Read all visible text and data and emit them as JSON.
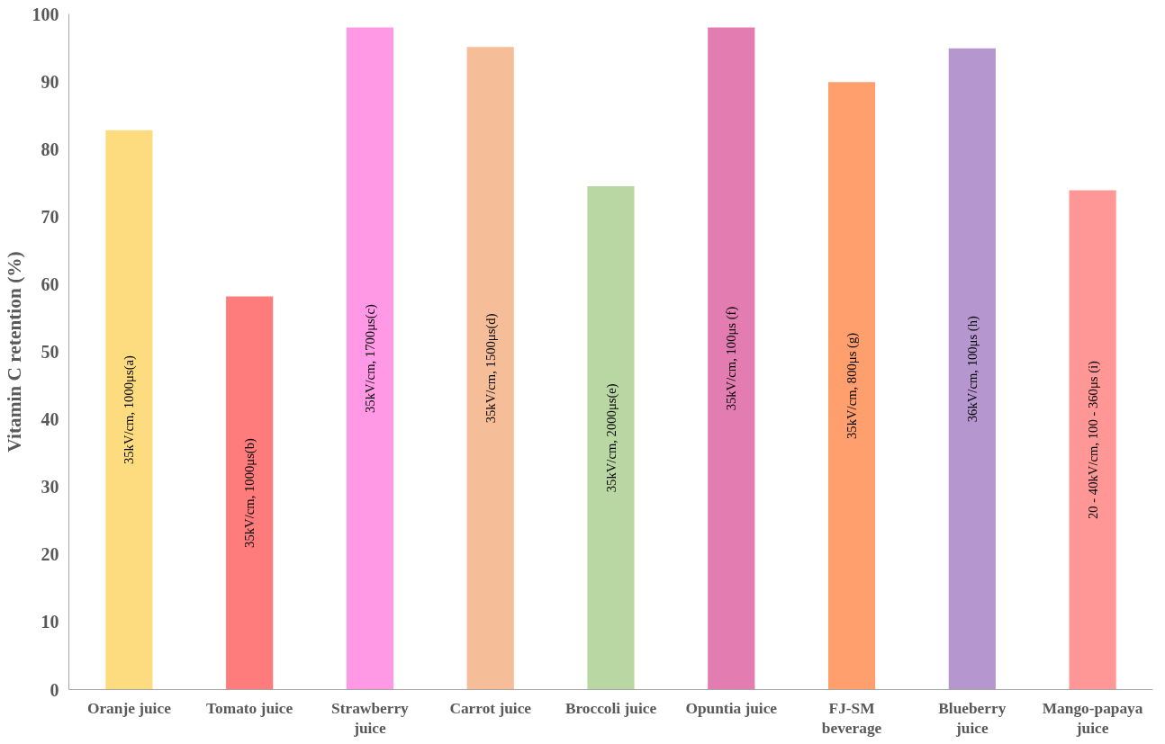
{
  "chart_data": {
    "type": "bar",
    "ylabel": "Vitamin C retention (%)",
    "categories": [
      "Oranje juice",
      "Tomato juice",
      "Strawberry juice",
      "Carrot juice",
      "Broccoli juice",
      "Opuntia juice",
      "FJ-SM beverage",
      "Blueberry juice",
      "Mango-papaya juice"
    ],
    "values": [
      82.8,
      58.2,
      98.0,
      95.1,
      74.5,
      98.0,
      89.9,
      94.9,
      73.9
    ],
    "colors": [
      "#fddc80",
      "#ff7c7c",
      "#ff99e6",
      "#f5bd98",
      "#b9d7a3",
      "#e27cb1",
      "#ff9f6e",
      "#b696cf",
      "#ff9797"
    ],
    "ylim": [
      0,
      100
    ],
    "yticks": [
      0,
      10,
      20,
      30,
      40,
      50,
      60,
      70,
      80,
      90,
      100
    ],
    "grid": false,
    "annotations": [
      "35kV/cm, 1000μs(a)",
      "35kV/cm, 1000μs(b)",
      "35kV/cm, 1700μs(c)",
      "35kV/cm, 1500μs(d)",
      "35kV/cm, 2000μs(e)",
      "35kV/cm, 100μs (f)",
      "35kV/cm, 800μs (g)",
      "36kV/cm, 100μs (h)",
      "20 - 40kV/cm, 100 - 360μs (i)"
    ]
  }
}
